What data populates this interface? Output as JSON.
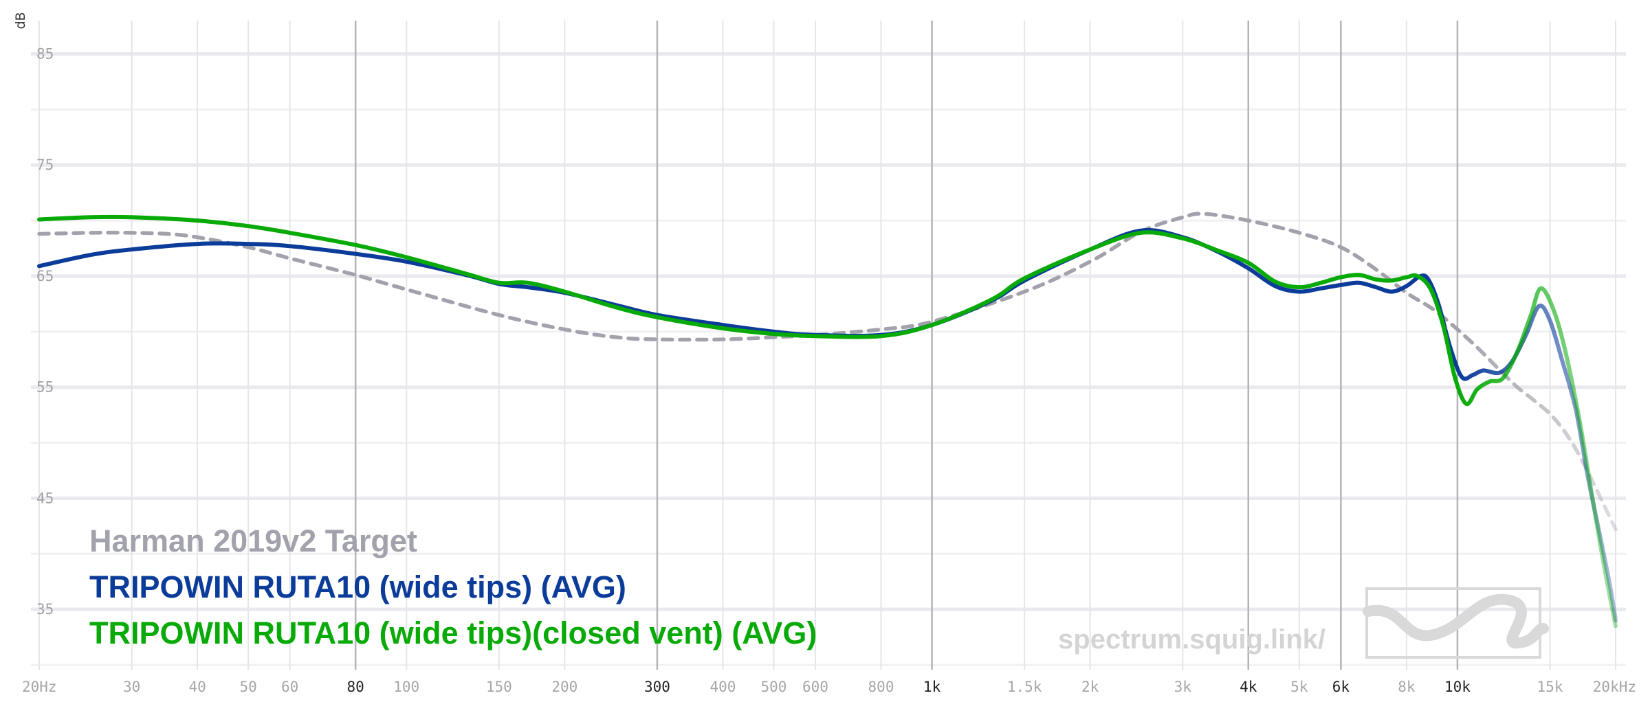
{
  "chart_data": {
    "type": "line",
    "x_scale": "log",
    "y_unit": "dB",
    "ylim": [
      30,
      88
    ],
    "xlim": [
      20,
      20000
    ],
    "y_ticks": [
      {
        "value": 85,
        "label": "85"
      },
      {
        "value": 75,
        "label": "75"
      },
      {
        "value": 65,
        "label": "65"
      },
      {
        "value": 55,
        "label": "55"
      },
      {
        "value": 45,
        "label": "45"
      },
      {
        "value": 35,
        "label": "35"
      }
    ],
    "y_gridlines": [
      85,
      80,
      75,
      70,
      65,
      60,
      55,
      50,
      45,
      40,
      35,
      30
    ],
    "x_ticks": [
      {
        "value": 20,
        "label": "20Hz",
        "major": false
      },
      {
        "value": 30,
        "label": "30",
        "major": false
      },
      {
        "value": 40,
        "label": "40",
        "major": false
      },
      {
        "value": 50,
        "label": "50",
        "major": false
      },
      {
        "value": 60,
        "label": "60",
        "major": false
      },
      {
        "value": 80,
        "label": "80",
        "major": true
      },
      {
        "value": 100,
        "label": "100",
        "major": false
      },
      {
        "value": 150,
        "label": "150",
        "major": false
      },
      {
        "value": 200,
        "label": "200",
        "major": false
      },
      {
        "value": 300,
        "label": "300",
        "major": true
      },
      {
        "value": 400,
        "label": "400",
        "major": false
      },
      {
        "value": 500,
        "label": "500",
        "major": false
      },
      {
        "value": 600,
        "label": "600",
        "major": false
      },
      {
        "value": 800,
        "label": "800",
        "major": false
      },
      {
        "value": 1000,
        "label": "1k",
        "major": true
      },
      {
        "value": 1500,
        "label": "1.5k",
        "major": false
      },
      {
        "value": 2000,
        "label": "2k",
        "major": false
      },
      {
        "value": 3000,
        "label": "3k",
        "major": false
      },
      {
        "value": 4000,
        "label": "4k",
        "major": true
      },
      {
        "value": 5000,
        "label": "5k",
        "major": false
      },
      {
        "value": 6000,
        "label": "6k",
        "major": true
      },
      {
        "value": 8000,
        "label": "8k",
        "major": false
      },
      {
        "value": 10000,
        "label": "10k",
        "major": true
      },
      {
        "value": 15000,
        "label": "15k",
        "major": false
      },
      {
        "value": 20000,
        "label": "20kHz",
        "major": false
      }
    ],
    "series": [
      {
        "name": "Harman 2019v2 Target",
        "color": "#a2a2ac",
        "dashed": true,
        "points": [
          [
            20,
            68.8
          ],
          [
            25,
            68.9
          ],
          [
            30,
            68.9
          ],
          [
            35,
            68.8
          ],
          [
            40,
            68.5
          ],
          [
            50,
            67.6
          ],
          [
            60,
            66.6
          ],
          [
            80,
            65.1
          ],
          [
            100,
            63.8
          ],
          [
            150,
            61.5
          ],
          [
            200,
            60.2
          ],
          [
            250,
            59.5
          ],
          [
            300,
            59.3
          ],
          [
            400,
            59.3
          ],
          [
            500,
            59.5
          ],
          [
            600,
            59.7
          ],
          [
            800,
            60.2
          ],
          [
            1000,
            60.9
          ],
          [
            1500,
            63.6
          ],
          [
            2000,
            66.3
          ],
          [
            2500,
            69.0
          ],
          [
            3000,
            70.3
          ],
          [
            3300,
            70.6
          ],
          [
            4000,
            70.0
          ],
          [
            5000,
            68.9
          ],
          [
            6000,
            67.6
          ],
          [
            7000,
            65.6
          ],
          [
            8000,
            63.5
          ],
          [
            9000,
            62.0
          ],
          [
            10000,
            60.2
          ],
          [
            11000,
            58.4
          ],
          [
            12000,
            56.6
          ],
          [
            13000,
            55.0
          ],
          [
            14000,
            53.8
          ],
          [
            15000,
            52.6
          ],
          [
            16000,
            51.0
          ],
          [
            17000,
            49.0
          ],
          [
            18000,
            46.7
          ],
          [
            19000,
            44.4
          ],
          [
            20000,
            42.2
          ]
        ]
      },
      {
        "name": "TRIPOWIN RUTA10 (wide tips) (AVG)",
        "color": "#0c3c9a",
        "dashed": false,
        "points": [
          [
            20,
            65.9
          ],
          [
            25,
            66.9
          ],
          [
            30,
            67.4
          ],
          [
            40,
            67.9
          ],
          [
            50,
            67.9
          ],
          [
            60,
            67.7
          ],
          [
            80,
            67.0
          ],
          [
            100,
            66.3
          ],
          [
            130,
            65.1
          ],
          [
            150,
            64.3
          ],
          [
            170,
            64.0
          ],
          [
            200,
            63.5
          ],
          [
            250,
            62.4
          ],
          [
            300,
            61.5
          ],
          [
            400,
            60.6
          ],
          [
            500,
            60.0
          ],
          [
            600,
            59.7
          ],
          [
            800,
            59.7
          ],
          [
            1000,
            60.6
          ],
          [
            1300,
            62.8
          ],
          [
            1500,
            64.6
          ],
          [
            2000,
            67.4
          ],
          [
            2500,
            69.1
          ],
          [
            3000,
            68.5
          ],
          [
            3500,
            67.2
          ],
          [
            4000,
            65.7
          ],
          [
            4500,
            64.1
          ],
          [
            5000,
            63.6
          ],
          [
            5500,
            63.9
          ],
          [
            6000,
            64.2
          ],
          [
            6500,
            64.4
          ],
          [
            7000,
            64.0
          ],
          [
            7500,
            63.6
          ],
          [
            8000,
            64.1
          ],
          [
            8500,
            65.0
          ],
          [
            8800,
            64.7
          ],
          [
            9200,
            62.5
          ],
          [
            9700,
            58.5
          ],
          [
            10200,
            55.9
          ],
          [
            10700,
            56.1
          ],
          [
            11200,
            56.5
          ],
          [
            12000,
            56.3
          ],
          [
            12700,
            57.3
          ],
          [
            13500,
            59.7
          ],
          [
            14300,
            62.3
          ],
          [
            15000,
            61.0
          ],
          [
            15800,
            57.5
          ],
          [
            16800,
            53.0
          ],
          [
            17700,
            47.0
          ],
          [
            18700,
            41.5
          ],
          [
            19500,
            37.2
          ],
          [
            20000,
            34.0
          ]
        ]
      },
      {
        "name": "TRIPOWIN RUTA10 (wide tips)(closed vent) (AVG)",
        "color": "#08aa08",
        "dashed": false,
        "points": [
          [
            20,
            70.1
          ],
          [
            25,
            70.3
          ],
          [
            30,
            70.3
          ],
          [
            40,
            70.0
          ],
          [
            50,
            69.5
          ],
          [
            60,
            68.9
          ],
          [
            80,
            67.8
          ],
          [
            100,
            66.7
          ],
          [
            130,
            65.2
          ],
          [
            150,
            64.4
          ],
          [
            170,
            64.4
          ],
          [
            200,
            63.6
          ],
          [
            250,
            62.2
          ],
          [
            300,
            61.3
          ],
          [
            400,
            60.3
          ],
          [
            500,
            59.8
          ],
          [
            600,
            59.6
          ],
          [
            800,
            59.6
          ],
          [
            1000,
            60.6
          ],
          [
            1300,
            62.9
          ],
          [
            1500,
            64.8
          ],
          [
            2000,
            67.4
          ],
          [
            2500,
            68.9
          ],
          [
            3000,
            68.4
          ],
          [
            3500,
            67.3
          ],
          [
            4000,
            66.2
          ],
          [
            4500,
            64.5
          ],
          [
            5000,
            64.0
          ],
          [
            5500,
            64.4
          ],
          [
            6000,
            64.9
          ],
          [
            6500,
            65.1
          ],
          [
            7000,
            64.7
          ],
          [
            7500,
            64.6
          ],
          [
            8000,
            64.9
          ],
          [
            8400,
            65.0
          ],
          [
            8900,
            63.8
          ],
          [
            9400,
            60.5
          ],
          [
            9900,
            55.8
          ],
          [
            10400,
            53.5
          ],
          [
            10900,
            54.8
          ],
          [
            11500,
            55.5
          ],
          [
            12200,
            55.8
          ],
          [
            13000,
            58.2
          ],
          [
            13800,
            61.5
          ],
          [
            14400,
            63.9
          ],
          [
            15200,
            62.1
          ],
          [
            16000,
            58.5
          ],
          [
            17000,
            52.5
          ],
          [
            18000,
            45.5
          ],
          [
            19000,
            39.0
          ],
          [
            20000,
            33.5
          ]
        ]
      }
    ],
    "legend": {
      "placement": "bottom-left",
      "entries": [
        {
          "label": "Harman 2019v2 Target",
          "color": "#a2a2ac"
        },
        {
          "label": "TRIPOWIN RUTA10 (wide tips) (AVG)",
          "color": "#0c3c9a"
        },
        {
          "label": "TRIPOWIN RUTA10 (wide tips)(closed vent) (AVG)",
          "color": "#08aa08"
        }
      ]
    },
    "watermark": "spectrum.squig.link/"
  }
}
